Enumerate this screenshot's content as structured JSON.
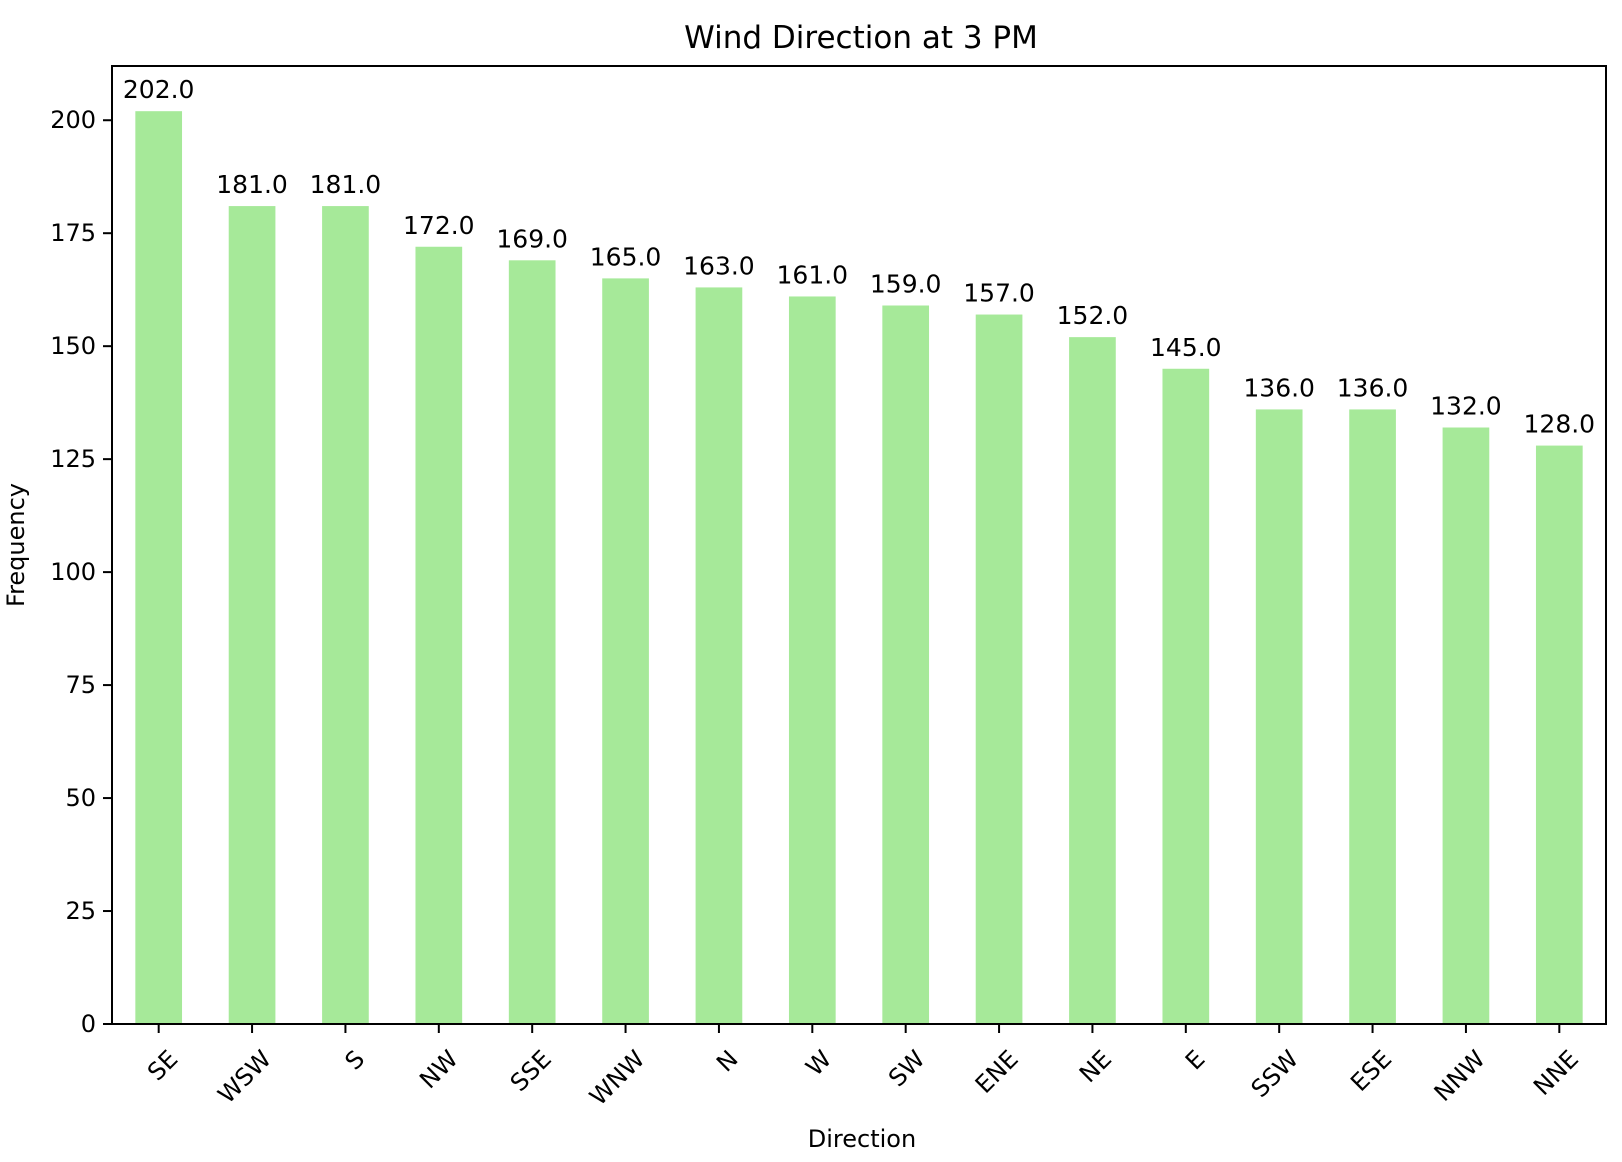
{
  "chart_data": {
    "type": "bar",
    "title": "Wind Direction at 3 PM",
    "xlabel": "Direction",
    "ylabel": "Frequency",
    "categories": [
      "SE",
      "WSW",
      "S",
      "NW",
      "SSE",
      "WNW",
      "N",
      "W",
      "SW",
      "ENE",
      "NE",
      "E",
      "SSW",
      "ESE",
      "NNW",
      "NNE"
    ],
    "values": [
      202,
      181,
      181,
      172,
      169,
      165,
      163,
      161,
      159,
      157,
      152,
      145,
      136,
      136,
      132,
      128
    ],
    "value_labels": [
      "202.0",
      "181.0",
      "181.0",
      "172.0",
      "169.0",
      "165.0",
      "163.0",
      "161.0",
      "159.0",
      "157.0",
      "152.0",
      "145.0",
      "136.0",
      "136.0",
      "132.0",
      "128.0"
    ],
    "yticks": [
      0,
      25,
      50,
      75,
      100,
      125,
      150,
      175,
      200
    ],
    "ylim": [
      0,
      212
    ],
    "grid": false,
    "legend": "none",
    "bar_color": "#a6e999"
  }
}
